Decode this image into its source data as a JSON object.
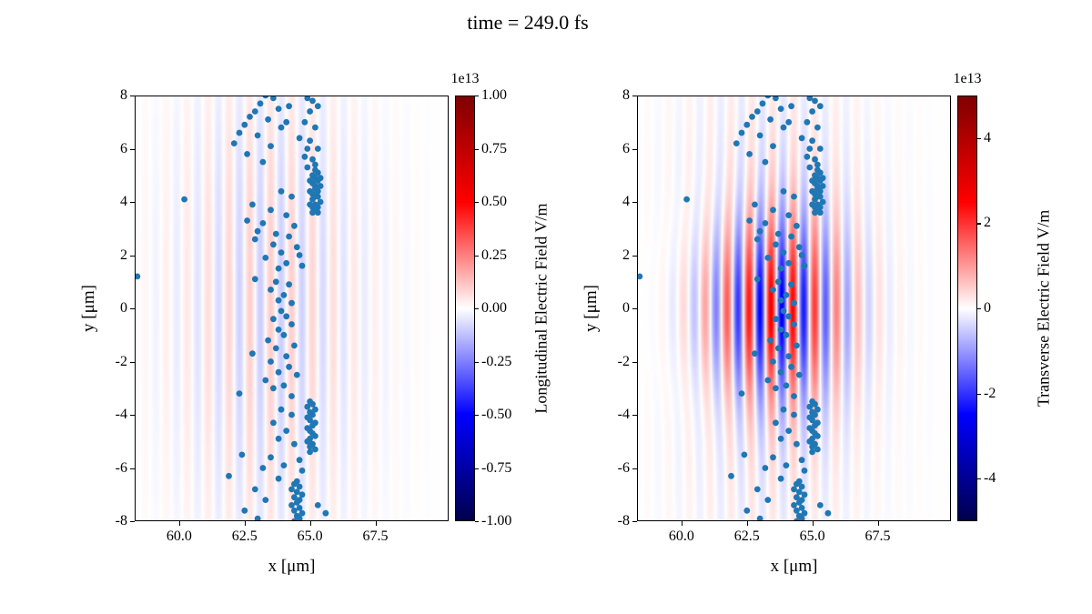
{
  "title": "time = 249.0 fs",
  "colors": {
    "scatter": "#1f77b4",
    "axis": "#000000",
    "background": "#ffffff",
    "colormap": "seismic",
    "cmap_stops": [
      "#00004c 0%",
      "#0000ff 25%",
      "#ffffff 50%",
      "#ff0000 75%",
      "#7f0000 100%"
    ]
  },
  "chart_data": [
    {
      "type": "scatter",
      "panel": "longitudinal",
      "xlabel": "x [μm]",
      "ylabel": "y [μm]",
      "xlim": [
        58.3,
        70.3
      ],
      "ylim": [
        -8,
        8
      ],
      "xticks": [
        "60.0",
        "62.5",
        "65.0",
        "67.5"
      ],
      "xtick_values": [
        60.0,
        62.5,
        65.0,
        67.5
      ],
      "yticks": [
        "8",
        "6",
        "4",
        "2",
        "0",
        "-2",
        "-4",
        "-6",
        "-8"
      ],
      "ytick_values": [
        8,
        6,
        4,
        2,
        0,
        -2,
        -4,
        -6,
        -8
      ],
      "grid": false,
      "colorbar": {
        "label": "Longitudinal Electric Field V/m",
        "scale": "1e13",
        "ticks": [
          "1.00",
          "0.75",
          "0.50",
          "0.25",
          "0.00",
          "-0.25",
          "-0.50",
          "-0.75",
          "-1.00"
        ],
        "tick_values": [
          1.0,
          0.75,
          0.5,
          0.25,
          0.0,
          -0.25,
          -0.5,
          -0.75,
          -1.0
        ],
        "vmin": -1.0,
        "vmax": 1.0
      },
      "field": [
        {
          "amplitude": 0.1,
          "center_x": 63.5,
          "center_y": 0,
          "sigma_x": 2.6,
          "sigma_y": 6.5,
          "wavelength": 0.8
        }
      ]
    },
    {
      "type": "scatter",
      "panel": "transverse",
      "xlabel": "x [μm]",
      "ylabel": "y [μm]",
      "xlim": [
        58.3,
        70.3
      ],
      "ylim": [
        -8,
        8
      ],
      "xticks": [
        "60.0",
        "62.5",
        "65.0",
        "67.5"
      ],
      "xtick_values": [
        60.0,
        62.5,
        65.0,
        67.5
      ],
      "yticks": [
        "8",
        "6",
        "4",
        "2",
        "0",
        "-2",
        "-4",
        "-6",
        "-8"
      ],
      "ytick_values": [
        8,
        6,
        4,
        2,
        0,
        -2,
        -4,
        -6,
        -8
      ],
      "grid": false,
      "colorbar": {
        "label": "Transverse Electric Field V/m",
        "scale": "1e13",
        "ticks": [
          "4",
          "2",
          "0",
          "-2",
          "-4"
        ],
        "tick_values": [
          4,
          2,
          0,
          -2,
          -4
        ],
        "vmin": -5.0,
        "vmax": 5.0
      },
      "field": [
        {
          "amplitude": 0.45,
          "center_x": 63.4,
          "center_y": 0.0,
          "sigma_x": 1.9,
          "sigma_y": 2.3,
          "wavelength": 0.85
        },
        {
          "amplitude": 0.1,
          "center_x": 63.5,
          "center_y": 0,
          "sigma_x": 2.6,
          "sigma_y": 6.5,
          "wavelength": 0.8
        }
      ]
    }
  ],
  "scatter_points": [
    [
      58.4,
      1.2
    ],
    [
      60.2,
      4.1
    ],
    [
      63.3,
      8.0
    ],
    [
      63.6,
      7.9
    ],
    [
      64.9,
      7.9
    ],
    [
      65.1,
      7.8
    ],
    [
      63.1,
      7.7
    ],
    [
      64.2,
      7.6
    ],
    [
      65.3,
      7.6
    ],
    [
      63.8,
      7.5
    ],
    [
      62.9,
      7.4
    ],
    [
      65.0,
      7.4
    ],
    [
      62.7,
      7.2
    ],
    [
      63.4,
      7.1
    ],
    [
      64.1,
      7.0
    ],
    [
      64.8,
      7.0
    ],
    [
      62.5,
      6.9
    ],
    [
      63.9,
      6.8
    ],
    [
      65.2,
      6.8
    ],
    [
      62.3,
      6.6
    ],
    [
      63.0,
      6.5
    ],
    [
      64.6,
      6.4
    ],
    [
      65.0,
      6.3
    ],
    [
      62.1,
      6.2
    ],
    [
      63.5,
      6.1
    ],
    [
      64.9,
      6.0
    ],
    [
      65.3,
      6.0
    ],
    [
      62.6,
      5.8
    ],
    [
      64.8,
      5.7
    ],
    [
      65.1,
      5.6
    ],
    [
      63.2,
      5.5
    ],
    [
      65.2,
      5.4
    ],
    [
      64.9,
      5.3
    ],
    [
      65.2,
      5.2
    ],
    [
      65.3,
      5.1
    ],
    [
      65.1,
      5.0
    ],
    [
      65.4,
      4.9
    ],
    [
      65.2,
      4.9
    ],
    [
      65.0,
      4.8
    ],
    [
      65.3,
      4.8
    ],
    [
      65.1,
      4.7
    ],
    [
      65.2,
      4.6
    ],
    [
      65.4,
      4.6
    ],
    [
      65.2,
      4.5
    ],
    [
      65.0,
      4.4
    ],
    [
      65.3,
      4.4
    ],
    [
      65.1,
      4.3
    ],
    [
      65.2,
      4.2
    ],
    [
      65.3,
      4.2
    ],
    [
      65.1,
      4.1
    ],
    [
      65.4,
      4.0
    ],
    [
      65.2,
      3.9
    ],
    [
      65.0,
      3.9
    ],
    [
      65.3,
      3.8
    ],
    [
      65.1,
      3.8
    ],
    [
      65.2,
      3.7
    ],
    [
      65.3,
      3.6
    ],
    [
      65.1,
      3.6
    ],
    [
      63.9,
      4.4
    ],
    [
      64.3,
      4.2
    ],
    [
      62.8,
      3.9
    ],
    [
      63.5,
      3.7
    ],
    [
      64.1,
      3.5
    ],
    [
      62.6,
      3.3
    ],
    [
      63.2,
      3.2
    ],
    [
      64.4,
      3.1
    ],
    [
      63.0,
      2.9
    ],
    [
      63.7,
      2.8
    ],
    [
      64.2,
      2.7
    ],
    [
      62.9,
      2.6
    ],
    [
      63.6,
      2.4
    ],
    [
      64.5,
      2.3
    ],
    [
      63.9,
      2.1
    ],
    [
      64.6,
      2.0
    ],
    [
      63.3,
      1.9
    ],
    [
      64.1,
      1.7
    ],
    [
      64.7,
      1.6
    ],
    [
      63.8,
      1.5
    ],
    [
      62.9,
      1.1
    ],
    [
      63.7,
      1.0
    ],
    [
      64.2,
      0.9
    ],
    [
      63.5,
      0.7
    ],
    [
      64.0,
      0.5
    ],
    [
      63.8,
      0.3
    ],
    [
      64.3,
      0.2
    ],
    [
      63.9,
      -0.1
    ],
    [
      64.1,
      -0.3
    ],
    [
      63.6,
      -0.4
    ],
    [
      64.3,
      -0.6
    ],
    [
      63.8,
      -0.8
    ],
    [
      64.0,
      -1.0
    ],
    [
      63.4,
      -1.2
    ],
    [
      64.4,
      -1.4
    ],
    [
      63.7,
      -1.5
    ],
    [
      62.8,
      -1.7
    ],
    [
      64.1,
      -1.8
    ],
    [
      63.5,
      -2.0
    ],
    [
      64.2,
      -2.2
    ],
    [
      63.8,
      -2.4
    ],
    [
      64.5,
      -2.5
    ],
    [
      63.3,
      -2.7
    ],
    [
      64.0,
      -2.9
    ],
    [
      63.6,
      -3.0
    ],
    [
      62.3,
      -3.2
    ],
    [
      64.3,
      -3.3
    ],
    [
      65.0,
      -3.5
    ],
    [
      65.1,
      -3.6
    ],
    [
      64.9,
      -3.7
    ],
    [
      65.2,
      -3.8
    ],
    [
      65.0,
      -3.9
    ],
    [
      65.1,
      -4.0
    ],
    [
      64.9,
      -4.1
    ],
    [
      65.0,
      -4.2
    ],
    [
      65.2,
      -4.3
    ],
    [
      65.1,
      -4.4
    ],
    [
      64.9,
      -4.5
    ],
    [
      65.0,
      -4.6
    ],
    [
      65.1,
      -4.7
    ],
    [
      65.2,
      -4.8
    ],
    [
      65.0,
      -4.9
    ],
    [
      64.9,
      -5.0
    ],
    [
      65.1,
      -5.1
    ],
    [
      65.0,
      -5.2
    ],
    [
      65.2,
      -5.3
    ],
    [
      65.0,
      -5.4
    ],
    [
      63.9,
      -3.8
    ],
    [
      64.3,
      -4.0
    ],
    [
      63.6,
      -4.3
    ],
    [
      64.1,
      -4.6
    ],
    [
      63.8,
      -4.9
    ],
    [
      64.4,
      -5.1
    ],
    [
      62.4,
      -5.5
    ],
    [
      63.5,
      -5.6
    ],
    [
      64.6,
      -5.7
    ],
    [
      64.0,
      -5.9
    ],
    [
      63.2,
      -6.0
    ],
    [
      64.7,
      -6.1
    ],
    [
      61.9,
      -6.3
    ],
    [
      63.8,
      -6.4
    ],
    [
      64.5,
      -6.5
    ],
    [
      64.4,
      -6.6
    ],
    [
      64.6,
      -6.7
    ],
    [
      64.3,
      -6.8
    ],
    [
      64.5,
      -6.9
    ],
    [
      64.7,
      -7.0
    ],
    [
      64.4,
      -7.1
    ],
    [
      64.6,
      -7.2
    ],
    [
      64.5,
      -7.3
    ],
    [
      64.3,
      -7.4
    ],
    [
      64.6,
      -7.5
    ],
    [
      64.4,
      -7.6
    ],
    [
      64.7,
      -7.7
    ],
    [
      64.5,
      -7.8
    ],
    [
      64.6,
      -7.9
    ],
    [
      64.4,
      -8.0
    ],
    [
      62.9,
      -6.8
    ],
    [
      63.3,
      -7.2
    ],
    [
      62.5,
      -7.6
    ],
    [
      63.0,
      -7.9
    ],
    [
      65.6,
      -7.7
    ],
    [
      65.3,
      -7.4
    ]
  ]
}
